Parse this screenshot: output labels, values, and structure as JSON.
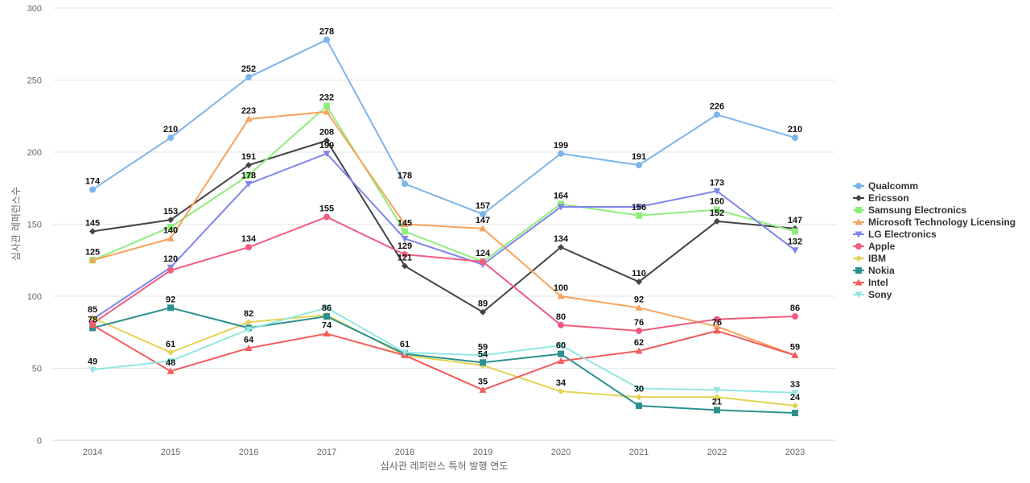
{
  "chart_data": {
    "type": "line",
    "title": "",
    "xlabel": "심사관 레퍼런스 특허 발행 연도",
    "ylabel": "심사관 레퍼런스수",
    "x": [
      "2014",
      "2015",
      "2016",
      "2017",
      "2018",
      "2019",
      "2020",
      "2021",
      "2022",
      "2023"
    ],
    "ylim": [
      0,
      300
    ],
    "yticks": [
      0,
      50,
      100,
      150,
      200,
      250,
      300
    ],
    "grid": true,
    "legend_position": "right",
    "series": [
      {
        "name": "Qualcomm",
        "color": "#7cb5ec",
        "marker": "circle",
        "values": [
          174,
          210,
          252,
          278,
          178,
          157,
          199,
          191,
          226,
          210
        ],
        "labeled": [
          true,
          true,
          true,
          true,
          true,
          true,
          true,
          true,
          true,
          true
        ]
      },
      {
        "name": "Ericsson",
        "color": "#434348",
        "marker": "diamond",
        "values": [
          145,
          153,
          191,
          208,
          121,
          89,
          134,
          110,
          152,
          147
        ],
        "labeled": [
          true,
          true,
          true,
          true,
          true,
          true,
          true,
          true,
          true,
          true
        ]
      },
      {
        "name": "Samsung Electronics",
        "color": "#90ed7d",
        "marker": "square",
        "values": [
          125,
          148,
          184,
          232,
          145,
          124,
          164,
          156,
          160,
          145
        ],
        "labeled": [
          true,
          false,
          false,
          true,
          true,
          true,
          true,
          true,
          true,
          false
        ]
      },
      {
        "name": "Microsoft Technology Licensing",
        "color": "#f7a35c",
        "marker": "triangle",
        "values": [
          125,
          140,
          223,
          228,
          150,
          147,
          100,
          92,
          79,
          59
        ],
        "labeled": [
          false,
          true,
          true,
          false,
          false,
          true,
          true,
          true,
          false,
          false
        ]
      },
      {
        "name": "LG Electronics",
        "color": "#8085e9",
        "marker": "triangle-down",
        "values": [
          84,
          120,
          178,
          199,
          140,
          122,
          162,
          162,
          173,
          132
        ],
        "labeled": [
          false,
          true,
          true,
          true,
          false,
          false,
          false,
          false,
          true,
          true
        ]
      },
      {
        "name": "Apple",
        "color": "#f15c80",
        "marker": "circle",
        "values": [
          81,
          118,
          134,
          155,
          129,
          124,
          80,
          76,
          84,
          86
        ],
        "labeled": [
          false,
          false,
          true,
          true,
          true,
          false,
          true,
          true,
          false,
          true
        ]
      },
      {
        "name": "IBM",
        "color": "#e4d354",
        "marker": "diamond",
        "values": [
          85,
          61,
          82,
          87,
          59,
          52,
          34,
          30,
          30,
          24
        ],
        "labeled": [
          true,
          true,
          true,
          false,
          false,
          false,
          true,
          true,
          false,
          true
        ]
      },
      {
        "name": "Nokia",
        "color": "#2b908f",
        "marker": "square",
        "values": [
          78,
          92,
          78,
          86,
          60,
          54,
          60,
          24,
          21,
          19
        ],
        "labeled": [
          true,
          true,
          false,
          true,
          false,
          true,
          true,
          false,
          true,
          false
        ]
      },
      {
        "name": "Intel",
        "color": "#f45b5b",
        "marker": "triangle",
        "values": [
          80,
          48,
          64,
          74,
          59,
          35,
          55,
          62,
          76,
          59
        ],
        "labeled": [
          false,
          true,
          true,
          true,
          false,
          true,
          false,
          true,
          true,
          true
        ]
      },
      {
        "name": "Sony",
        "color": "#91e8e1",
        "marker": "triangle-down",
        "values": [
          49,
          55,
          77,
          92,
          61,
          59,
          66,
          36,
          35,
          33
        ],
        "labeled": [
          true,
          false,
          false,
          false,
          true,
          true,
          false,
          false,
          false,
          true
        ]
      }
    ]
  }
}
